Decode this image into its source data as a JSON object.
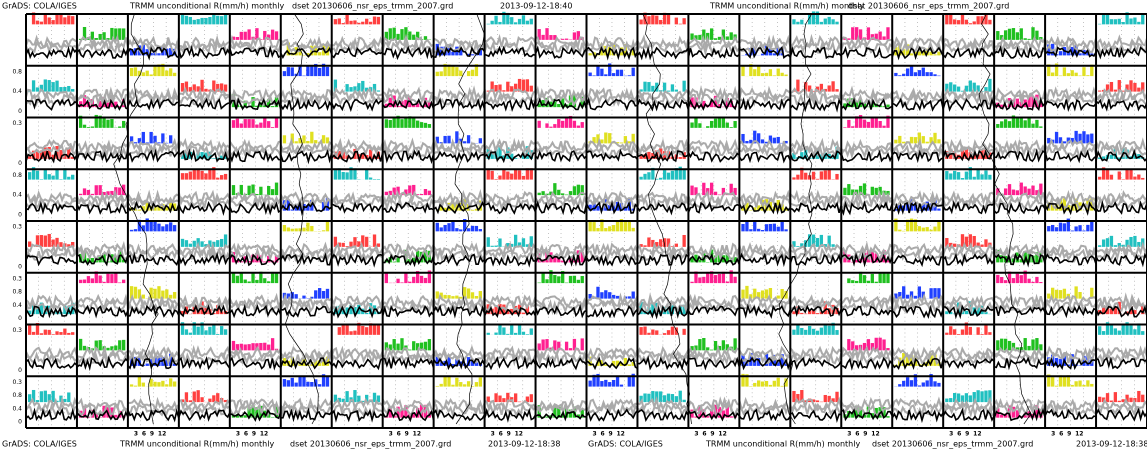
{
  "header": {
    "left": "GrADS: COLA/IGES",
    "title1": "TRMM  unconditional  R(mm/h)  monthly",
    "dset1": "dset  20130606_nsr_eps_trmm_2007.grd",
    "time": "2013-09-12-18:40",
    "title2": "TRMM  unconditional  R(mm/h)  monthly",
    "dset2": "dset  20130606_nsr_eps_trmm_2007.grd"
  },
  "footer": {
    "left1": "GrADS: COLA/IGES",
    "title1": "TRMM  unconditional  R(mm/h)  monthly",
    "dset1": "dset  20130606_nsr_eps_trmm_2007.grd",
    "time1": "2013-09-12-18:38",
    "left2": "GrADS: COLA/IGES",
    "title2": "TRMM  unconditional  R(mm/h)  monthly",
    "dset2": "dset  20130606_nsr_eps_trmm_2007.grd",
    "time2": "2013-09-12-18:38"
  },
  "row_labels": [
    [],
    [
      "0.8",
      "0.4",
      "0"
    ],
    [
      "0.3",
      "0"
    ],
    [
      "0.8",
      "0.4",
      "0"
    ],
    [
      "0.3",
      "0"
    ],
    [
      "0.3",
      "0.8",
      "0.4",
      "0"
    ],
    [
      "0.3",
      "0"
    ],
    [
      "0.3",
      "0.8",
      "0.4",
      "0"
    ]
  ],
  "x_labels": [
    "3",
    "6",
    "9",
    "12"
  ]
}
